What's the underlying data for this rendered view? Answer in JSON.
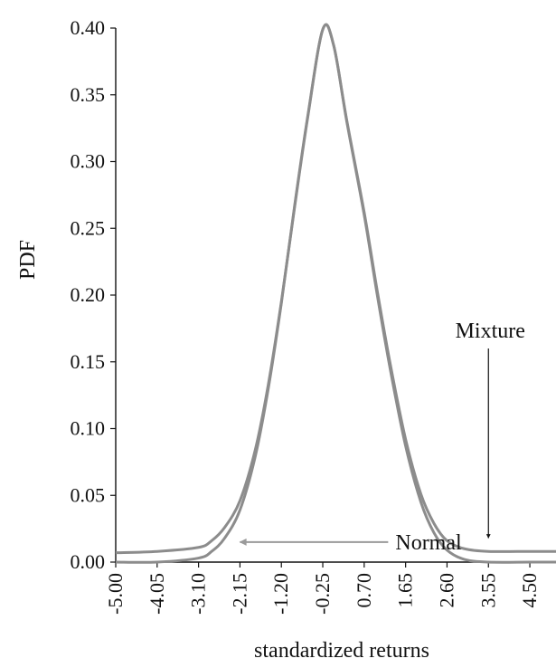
{
  "chart_data": {
    "type": "line",
    "xlabel": "standardized returns",
    "ylabel": "PDF",
    "xlim": [
      -5.0,
      5.1
    ],
    "ylim": [
      0.0,
      0.4
    ],
    "x_ticks": [
      "-5.00",
      "-4.05",
      "-3.10",
      "-2.15",
      "-1.20",
      "-0.25",
      "0.70",
      "1.65",
      "2.60",
      "3.55",
      "4.50"
    ],
    "y_ticks": [
      "0.00",
      "0.05",
      "0.10",
      "0.15",
      "0.20",
      "0.25",
      "0.30",
      "0.35",
      "0.40"
    ],
    "series": [
      {
        "name": "Normal",
        "x": [
          -5.0,
          -4.05,
          -3.1,
          -2.8,
          -2.5,
          -2.15,
          -1.8,
          -1.5,
          -1.2,
          -0.9,
          -0.6,
          -0.25,
          0.0,
          0.3,
          0.7,
          1.0,
          1.3,
          1.65,
          2.0,
          2.3,
          2.6,
          3.0,
          3.55,
          4.5,
          5.1
        ],
        "y": [
          0.0,
          0.0,
          0.003,
          0.008,
          0.018,
          0.039,
          0.079,
          0.13,
          0.194,
          0.266,
          0.333,
          0.399,
          0.387,
          0.33,
          0.26,
          0.2,
          0.144,
          0.087,
          0.045,
          0.022,
          0.009,
          0.002,
          0.0,
          0.0,
          0.0
        ],
        "color": "#8c8c8c"
      },
      {
        "name": "Mixture",
        "x": [
          -5.0,
          -4.05,
          -3.1,
          -2.8,
          -2.5,
          -2.15,
          -1.8,
          -1.5,
          -1.2,
          -0.9,
          -0.6,
          -0.25,
          0.0,
          0.3,
          0.7,
          1.0,
          1.3,
          1.65,
          2.0,
          2.3,
          2.6,
          3.0,
          3.55,
          4.5,
          5.1
        ],
        "y": [
          0.007,
          0.008,
          0.011,
          0.016,
          0.026,
          0.046,
          0.084,
          0.133,
          0.195,
          0.265,
          0.332,
          0.399,
          0.387,
          0.331,
          0.262,
          0.203,
          0.148,
          0.092,
          0.051,
          0.029,
          0.016,
          0.01,
          0.008,
          0.008,
          0.008
        ],
        "color": "#8c8c8c"
      }
    ],
    "annotations": [
      {
        "text": "Normal",
        "color": "#9a9a9a",
        "from": [
          1.25,
          0.015
        ],
        "to": [
          -2.15,
          0.015
        ]
      },
      {
        "text": "Mixture",
        "color": "#111111",
        "from": [
          3.55,
          0.16
        ],
        "to": [
          3.55,
          0.018
        ]
      }
    ]
  }
}
